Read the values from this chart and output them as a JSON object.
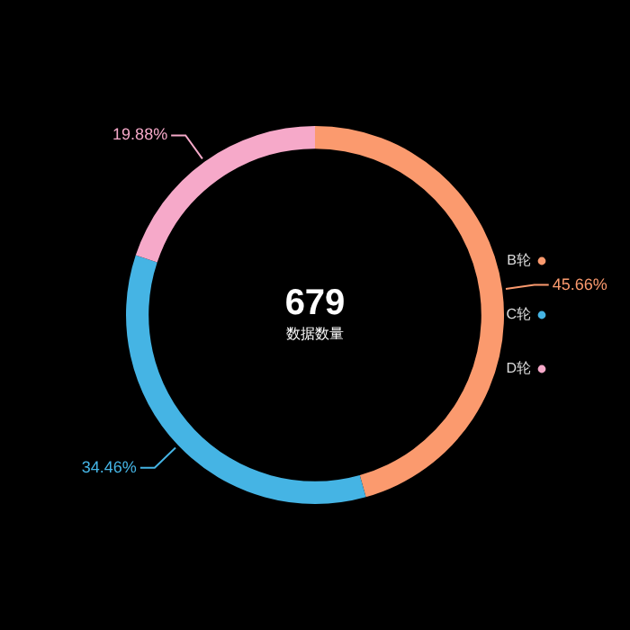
{
  "chart_data": {
    "type": "donut",
    "title": "679",
    "subtitle": "数据数量",
    "categories": [
      "B轮",
      "C轮",
      "D轮"
    ],
    "values": [
      45.66,
      34.46,
      19.88
    ],
    "colors": [
      "#fb9a6e",
      "#45b4e4",
      "#f6a9c9"
    ],
    "value_labels": [
      "45.66%",
      "34.46%",
      "19.88%"
    ],
    "legend": "right"
  }
}
